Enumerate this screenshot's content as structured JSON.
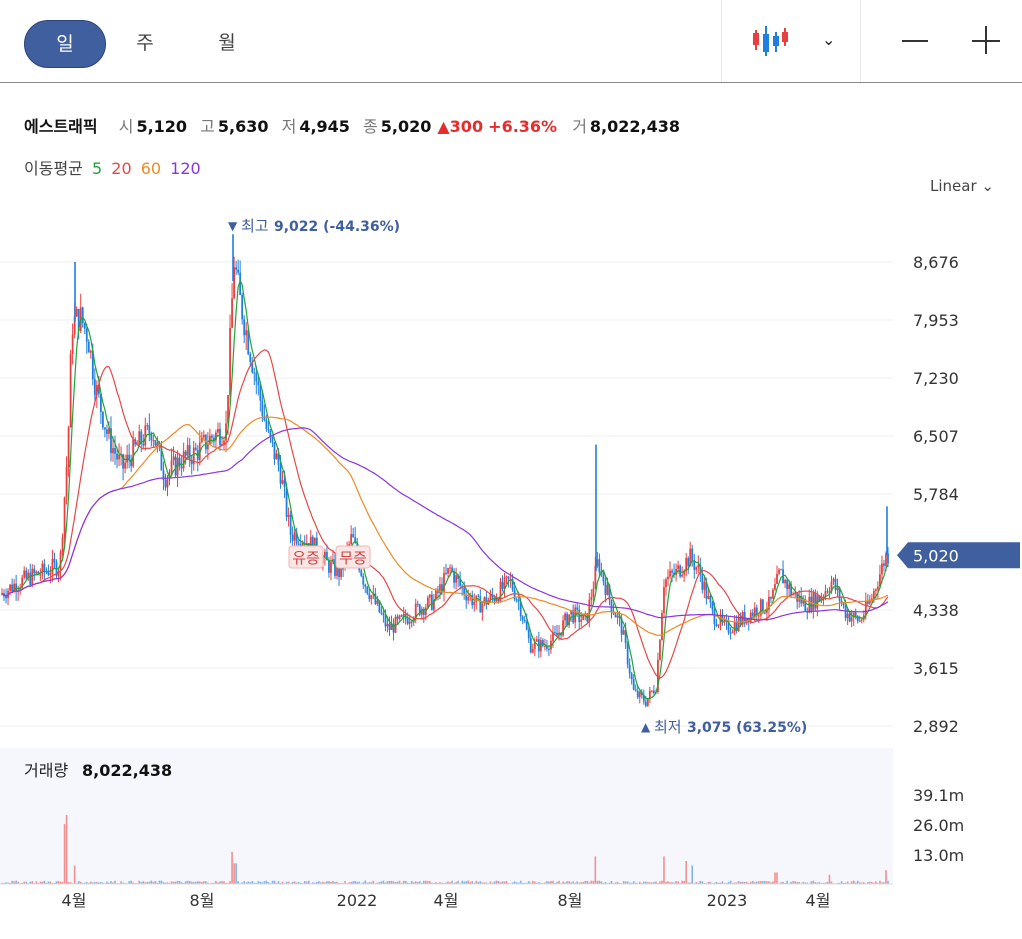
{
  "toolbar": {
    "periods": [
      {
        "label": "일",
        "active": true
      },
      {
        "label": "주",
        "active": false
      },
      {
        "label": "월",
        "active": false
      }
    ],
    "chart_type_icon": "candlestick-icon",
    "dropdown_icon": "chevron-down-icon",
    "zoom_out_icon": "minus-icon",
    "zoom_in_icon": "plus-icon"
  },
  "stock": {
    "name": "에스트래픽",
    "open_label": "시",
    "open": "5,120",
    "high_label": "고",
    "high": "5,630",
    "low_label": "저",
    "low": "4,945",
    "close_label": "종",
    "close": "5,020",
    "change": "300",
    "change_pct": "+6.36%",
    "volume_label": "거",
    "volume": "8,022,438"
  },
  "moving_average": {
    "label": "이동평균",
    "periods": [
      {
        "value": "5",
        "color": "#22a33a"
      },
      {
        "value": "20",
        "color": "#e54848"
      },
      {
        "value": "60",
        "color": "#f08a24"
      },
      {
        "value": "120",
        "color": "#8a35e0"
      }
    ]
  },
  "scale_selector": "Linear",
  "colors": {
    "up": "#e84040",
    "down": "#1f7fe0",
    "accent": "#3f5f9e"
  },
  "chart_data": {
    "type": "candlestick",
    "price_axis_ticks": [
      "8,676",
      "7,953",
      "7,230",
      "6,507",
      "5,784",
      "4,338",
      "3,615",
      "2,892"
    ],
    "price_axis_values": [
      8676,
      7953,
      7230,
      6507,
      5784,
      4338,
      3615,
      2892
    ],
    "current_price_label": "5,020",
    "current_price": 5020,
    "x_ticks": [
      "4월",
      "8월",
      "2022",
      "4월",
      "8월",
      "2023",
      "4월"
    ],
    "high_marker": {
      "label": "최고",
      "value": "9,022 (-44.36%)",
      "price": 9022
    },
    "low_marker": {
      "label": "최저",
      "value": "3,075 (63.25%)",
      "price": 3075
    },
    "annotations": [
      "유증",
      "무증"
    ],
    "volume": {
      "label": "거래량",
      "value": "8,022,438",
      "axis_ticks": [
        "39.1m",
        "26.0m",
        "13.0m"
      ],
      "axis_values": [
        39.1,
        26.0,
        13.0
      ]
    }
  }
}
